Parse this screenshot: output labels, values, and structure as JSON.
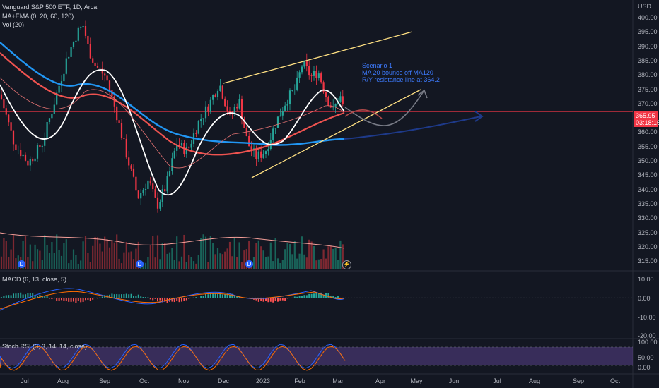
{
  "legend": {
    "title": "Vanguard S&P 500 ETF, 1D, Arca",
    "indicator1": "MA+EMA (0, 20, 60, 120)",
    "indicator2": "Vol (20)"
  },
  "price_axis": {
    "currency": "USD",
    "ticks": [
      "400.00",
      "395.00",
      "390.00",
      "385.00",
      "380.00",
      "375.00",
      "370.00",
      "365.00",
      "360.00",
      "355.00",
      "350.00",
      "345.00",
      "340.00",
      "335.00",
      "330.00",
      "325.00",
      "320.00",
      "315.00"
    ],
    "current_price": "365.95",
    "countdown": "03:18:16"
  },
  "macd": {
    "label": "MACD (6, 13, close, 5)",
    "ticks": [
      "10.00",
      "0.00",
      "-10.00",
      "-20.00"
    ]
  },
  "stoch": {
    "label": "Stoch RSI (3, 3, 14, 14, close)",
    "ticks": [
      "100.00",
      "50.00",
      "0.00"
    ]
  },
  "time_axis": [
    "Jul",
    "Aug",
    "Sep",
    "Oct",
    "Nov",
    "Dec",
    "2023",
    "Feb",
    "Mar",
    "Apr",
    "May",
    "Jun",
    "Jul",
    "Aug",
    "Sep",
    "Oct"
  ],
  "annotation": {
    "line1": "Scenario 1",
    "line2": "MA 20 bounce off MA120",
    "line3": "R/Y resistance line at 364.2"
  },
  "event_markers": [
    "D",
    "D",
    "D",
    "D"
  ],
  "split_marker": "⚡",
  "colors": {
    "up": "#26a69a",
    "down": "#f23645",
    "background": "#131722",
    "channel": "#ffe082",
    "ma20": "#ffffff",
    "ma120": "#2196f3",
    "stoch_fill": "#7e57c2"
  }
}
